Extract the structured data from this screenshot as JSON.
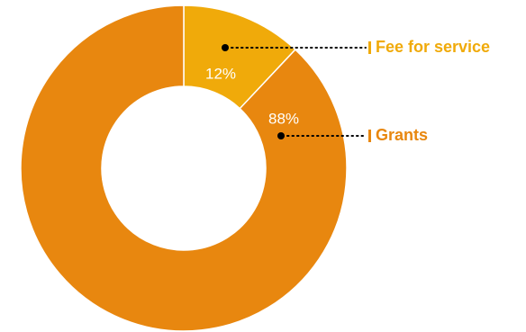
{
  "chart_data": {
    "type": "pie",
    "variant": "donut",
    "categories": [
      "Fee for service",
      "Grants"
    ],
    "values": [
      12,
      88
    ],
    "value_labels": [
      "12%",
      "88%"
    ],
    "colors": [
      "#F0AA0A",
      "#E8870F"
    ],
    "legend_placement": "right",
    "title": "",
    "subtitle": ""
  }
}
